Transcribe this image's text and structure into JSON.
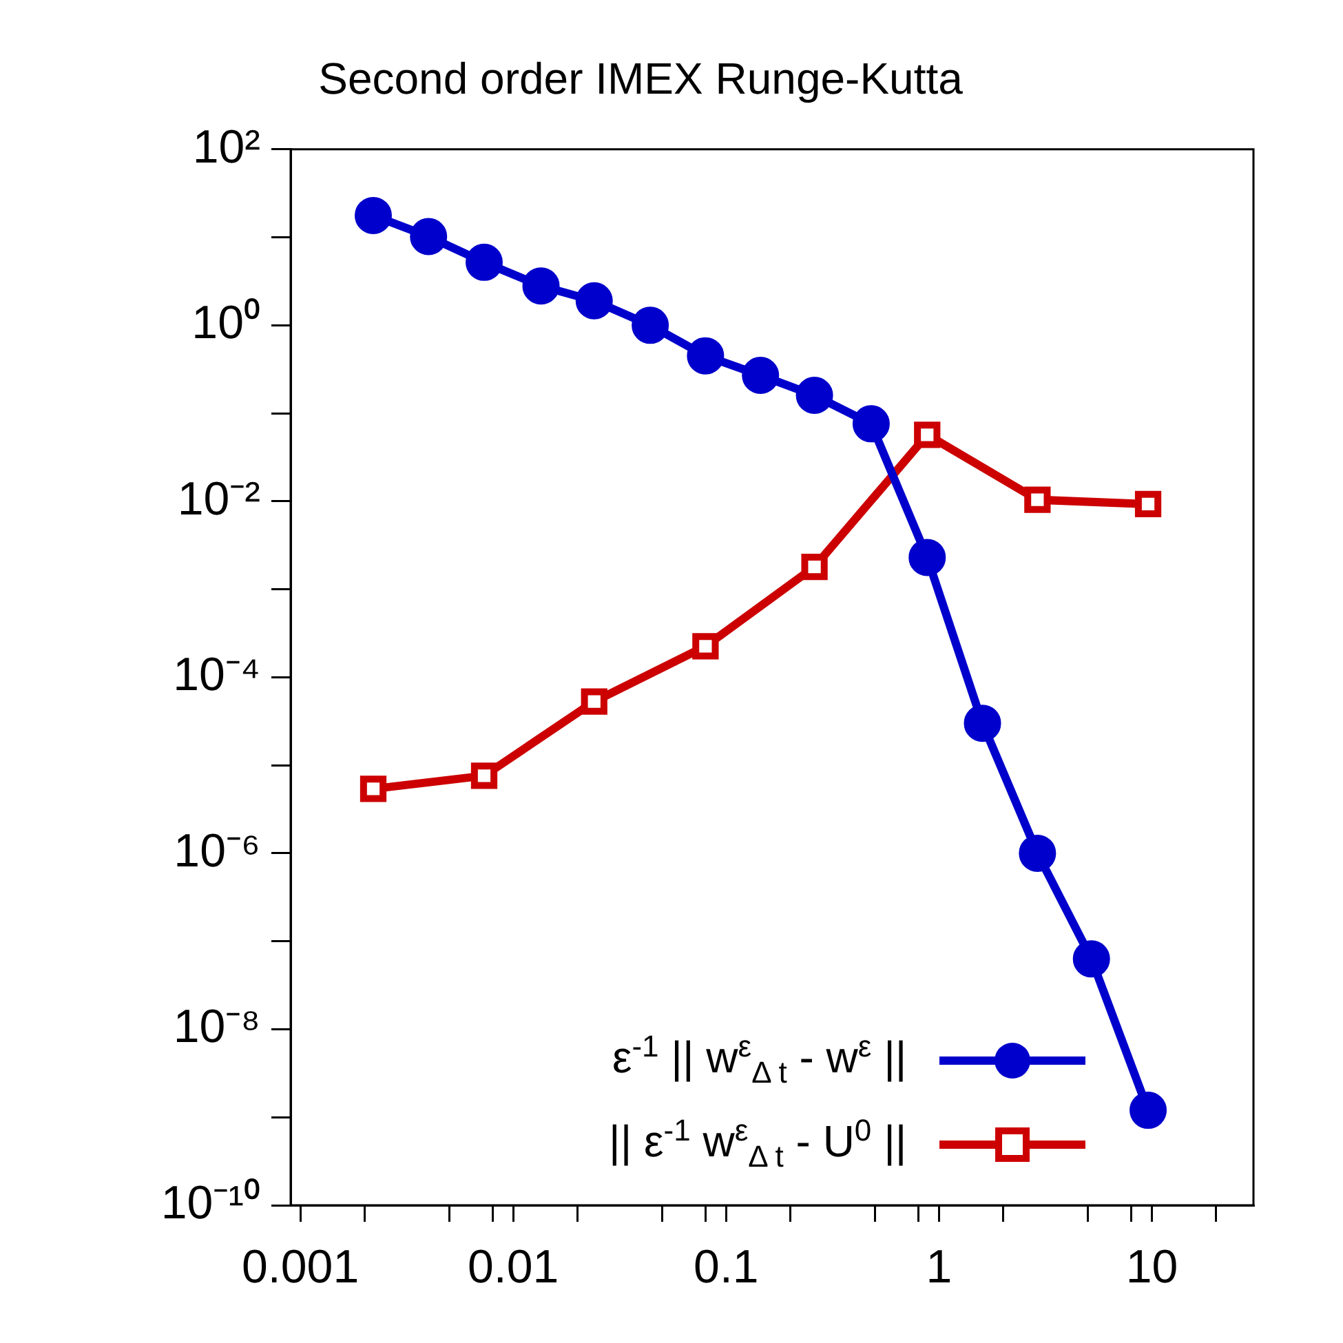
{
  "chart_data": {
    "type": "line",
    "title": "Second order IMEX Runge-Kutta",
    "log": "xy",
    "grid": false,
    "legend": "bottom right",
    "xlim": [
      0.0009,
      30
    ],
    "xticks": [
      {
        "value": 0.001,
        "label": "0.001"
      },
      {
        "value": 0.002,
        "label": null
      },
      {
        "value": 0.005,
        "label": null
      },
      {
        "value": 0.008,
        "label": null
      },
      {
        "value": 0.01,
        "label": "0.01"
      },
      {
        "value": 0.02,
        "label": null
      },
      {
        "value": 0.05,
        "label": null
      },
      {
        "value": 0.08,
        "label": null
      },
      {
        "value": 0.1,
        "label": "0.1"
      },
      {
        "value": 0.2,
        "label": null
      },
      {
        "value": 0.5,
        "label": null
      },
      {
        "value": 0.8,
        "label": null
      },
      {
        "value": 1,
        "label": "1"
      },
      {
        "value": 2,
        "label": null
      },
      {
        "value": 5,
        "label": null
      },
      {
        "value": 8,
        "label": null
      },
      {
        "value": 10,
        "label": "10"
      },
      {
        "value": 20,
        "label": null
      }
    ],
    "ylim": [
      1e-10,
      100
    ],
    "yticks": [
      {
        "value": 1e-10,
        "label": "10⁻¹⁰"
      },
      {
        "value": 1e-09,
        "label": null
      },
      {
        "value": 1e-08,
        "label": "10⁻⁸"
      },
      {
        "value": 1e-07,
        "label": null
      },
      {
        "value": 1e-06,
        "label": "10⁻⁶"
      },
      {
        "value": 1e-05,
        "label": null
      },
      {
        "value": 0.0001,
        "label": "10⁻⁴"
      },
      {
        "value": 0.001,
        "label": null
      },
      {
        "value": 0.01,
        "label": "10⁻²"
      },
      {
        "value": 0.1,
        "label": null
      },
      {
        "value": 1,
        "label": "10⁰"
      },
      {
        "value": 10,
        "label": null
      },
      {
        "value": 100,
        "label": "10²"
      }
    ],
    "series": [
      {
        "name": "ε$^{-1}$ || w$^{ε}$$_{Δ t}$ - w$^{ε}$ ||",
        "color": "#0000cc",
        "marker": "circle",
        "x": [
          0.0022,
          0.004,
          0.0073,
          0.0135,
          0.024,
          0.044,
          0.08,
          0.145,
          0.26,
          0.48,
          0.88,
          1.6,
          2.9,
          5.2,
          9.6
        ],
        "values": [
          17.7,
          10.2,
          5.2,
          2.8,
          1.9,
          1.0,
          0.45,
          0.27,
          0.16,
          0.076,
          0.0023,
          3e-05,
          1e-06,
          6.3e-08,
          1.2e-09
        ]
      },
      {
        "name": "|| ε$^{-1}$ w$^{ε}$$_{Δ t}$ - U$^{0}$ ||",
        "color": "#cc0000",
        "marker": "square",
        "x": [
          0.0022,
          0.0073,
          0.024,
          0.08,
          0.26,
          0.88,
          2.9,
          9.6
        ],
        "values": [
          5.4e-06,
          7.6e-06,
          5.3e-05,
          0.000225,
          0.0018,
          0.057,
          0.0104,
          0.0093
        ]
      }
    ]
  }
}
